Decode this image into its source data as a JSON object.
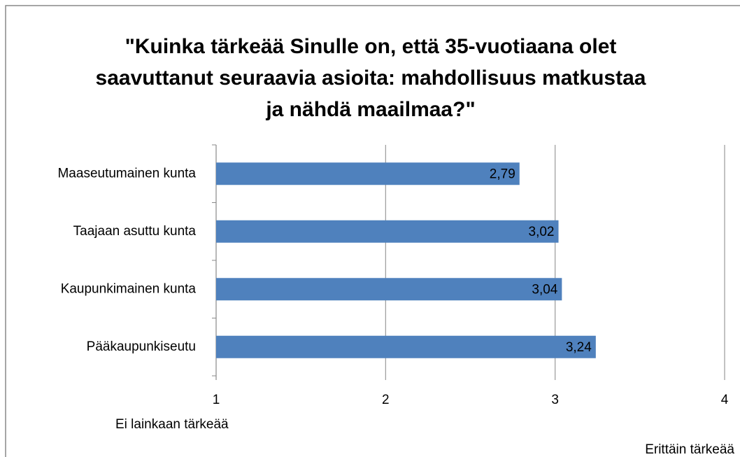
{
  "chart_data": {
    "type": "bar",
    "orientation": "horizontal",
    "title": "\"Kuinka tärkeää Sinulle on, että 35-vuotiaana olet saavuttanut seuraavia asioita: mahdollisuus matkustaa ja nähdä maailmaa?\"",
    "categories": [
      "Maaseutumainen kunta",
      "Taajaan asuttu kunta",
      "Kaupunkimainen kunta",
      "Pääkaupunkiseutu"
    ],
    "values": [
      2.79,
      3.02,
      3.04,
      3.24
    ],
    "value_labels": [
      "2,79",
      "3,02",
      "3,04",
      "3,24"
    ],
    "color": "#4f81bd",
    "xlim": [
      1,
      4
    ],
    "xticks": [
      1,
      2,
      3,
      4
    ],
    "grid": true,
    "annotations": [
      "Ei lainkaan tärkeää",
      "Erittäin tärkeää"
    ]
  }
}
